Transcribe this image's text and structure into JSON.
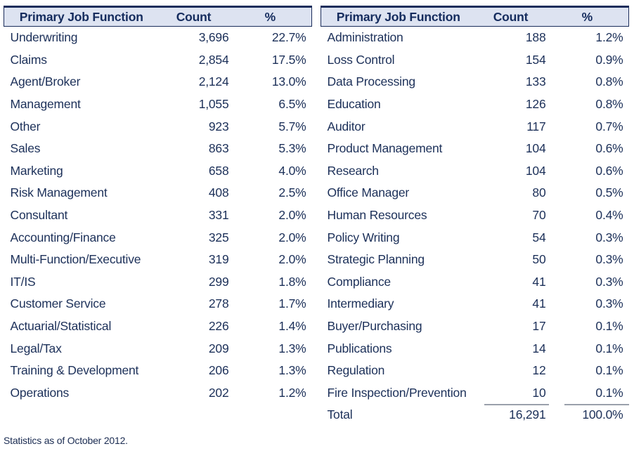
{
  "footnote": "Statistics as of October 2012.",
  "colors": {
    "navy_border": "#1b2d5b",
    "header_bg": "#dde3f1",
    "text": "#1c3059",
    "total_line": "#9aa0ab"
  },
  "tables": [
    {
      "headers": [
        "Primary Job Function",
        "Count",
        "%"
      ],
      "rows": [
        [
          "Underwriting",
          "3,696",
          "22.7%"
        ],
        [
          "Claims",
          "2,854",
          "17.5%"
        ],
        [
          "Agent/Broker",
          "2,124",
          "13.0%"
        ],
        [
          "Management",
          "1,055",
          "6.5%"
        ],
        [
          "Other",
          "923",
          "5.7%"
        ],
        [
          "Sales",
          "863",
          "5.3%"
        ],
        [
          "Marketing",
          "658",
          "4.0%"
        ],
        [
          "Risk Management",
          "408",
          "2.5%"
        ],
        [
          "Consultant",
          "331",
          "2.0%"
        ],
        [
          "Accounting/Finance",
          "325",
          "2.0%"
        ],
        [
          "Multi-Function/Executive",
          "319",
          "2.0%"
        ],
        [
          "IT/IS",
          "299",
          "1.8%"
        ],
        [
          "Customer Service",
          "278",
          "1.7%"
        ],
        [
          "Actuarial/Statistical",
          "226",
          "1.4%"
        ],
        [
          "Legal/Tax",
          "209",
          "1.3%"
        ],
        [
          "Training & Development",
          "206",
          "1.3%"
        ],
        [
          "Operations",
          "202",
          "1.2%"
        ]
      ]
    },
    {
      "headers": [
        "Primary Job Function",
        "Count",
        "%"
      ],
      "rows": [
        [
          "Administration",
          "188",
          "1.2%"
        ],
        [
          "Loss Control",
          "154",
          "0.9%"
        ],
        [
          "Data Processing",
          "133",
          "0.8%"
        ],
        [
          "Education",
          "126",
          "0.8%"
        ],
        [
          "Auditor",
          "117",
          "0.7%"
        ],
        [
          "Product Management",
          "104",
          "0.6%"
        ],
        [
          "Research",
          "104",
          "0.6%"
        ],
        [
          "Office Manager",
          "80",
          "0.5%"
        ],
        [
          "Human Resources",
          "70",
          "0.4%"
        ],
        [
          "Policy Writing",
          "54",
          "0.3%"
        ],
        [
          "Strategic Planning",
          "50",
          "0.3%"
        ],
        [
          "Compliance",
          "41",
          "0.3%"
        ],
        [
          "Intermediary",
          "41",
          "0.3%"
        ],
        [
          "Buyer/Purchasing",
          "17",
          "0.1%"
        ],
        [
          "Publications",
          "14",
          "0.1%"
        ],
        [
          "Regulation",
          "12",
          "0.1%"
        ],
        [
          "Fire Inspection/Prevention",
          "10",
          "0.1%"
        ]
      ],
      "total": [
        "Total",
        "16,291",
        "100.0%"
      ]
    }
  ]
}
